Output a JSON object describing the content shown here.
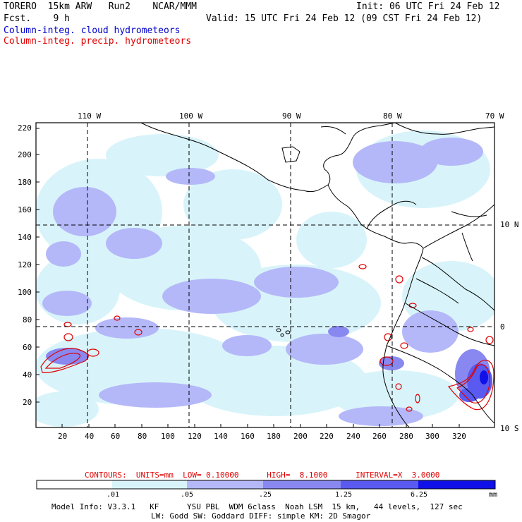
{
  "header": {
    "left_line1": "TORERO  15km ARW   Run2    NCAR/MMM",
    "left_line2": "Fcst.    9 h",
    "right_line1": "Init: 06 UTC Fri 24 Feb 12",
    "right_line2": "Valid: 15 UTC Fri 24 Feb 12 (09 CST Fri 24 Feb 12)",
    "legend_cloud": "Column-integ. cloud hydrometeors",
    "legend_precip": "Column-integ. precip. hydrometeors"
  },
  "colors": {
    "cloud_text": "#0000cc",
    "precip_text": "#e00000",
    "bin0": "#ffffff",
    "bin1": "#d8f4fa",
    "bin2": "#b4b8f8",
    "bin3": "#8888f0",
    "bin4": "#5a5af0",
    "bin5": "#1010e8",
    "contour": "#e00000",
    "grid": "#000000"
  },
  "map": {
    "top_lon_labels": [
      "110 W",
      "100 W",
      "90 W",
      "80 W",
      "70 W"
    ],
    "right_lat_labels": [
      "10 N",
      "0",
      "10 S"
    ],
    "y_ticks": [
      "220",
      "200",
      "180",
      "160",
      "140",
      "120",
      "100",
      "80",
      "60",
      "40",
      "20"
    ],
    "x_ticks": [
      "20",
      "40",
      "60",
      "80",
      "100",
      "120",
      "140",
      "160",
      "180",
      "200",
      "220",
      "240",
      "260",
      "280",
      "300",
      "320"
    ]
  },
  "contours": {
    "text": "CONTOURS:  UNITS=mm  LOW= 0.10000      HIGH=  8.1000      INTERVAL=X  3.0000"
  },
  "colorbar": {
    "labels": [
      ".01",
      ".05",
      ".25",
      "1.25",
      "6.25"
    ],
    "unit": "mm"
  },
  "footer": {
    "line1": "Model Info: V3.3.1   KF      YSU PBL  WDM 6class  Noah LSM  15 km,   44 levels,  127 sec",
    "line2": "LW: Godd SW: Goddard DIFF: simple KM: 2D Smagor"
  }
}
